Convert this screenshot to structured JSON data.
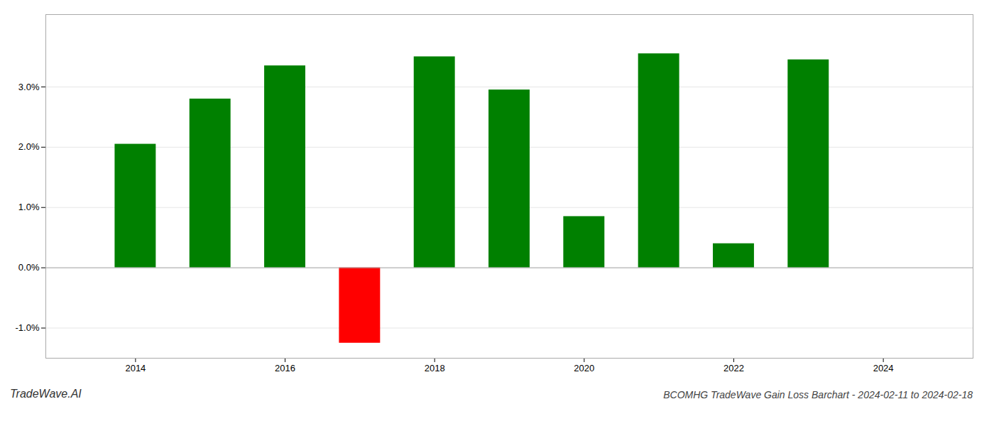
{
  "chart_data": {
    "type": "bar",
    "title": "BCOMHG TradeWave Gain Loss Barchart - 2024-02-11 to 2024-02-18",
    "annotations": [
      {
        "text": "TradeWave.AI"
      }
    ],
    "x": [
      2014,
      2015,
      2016,
      2017,
      2018,
      2019,
      2020,
      2021,
      2022,
      2023
    ],
    "values": [
      0.0205,
      0.028,
      0.0335,
      -0.0125,
      0.035,
      0.0295,
      0.0085,
      0.0355,
      0.004,
      0.0345
    ],
    "colors": [
      "#008000",
      "#008000",
      "#008000",
      "#ff0000",
      "#008000",
      "#008000",
      "#008000",
      "#008000",
      "#008000",
      "#008000"
    ],
    "xlim": [
      2012.8,
      2025.2
    ],
    "xticks": [
      2014,
      2016,
      2018,
      2020,
      2022,
      2024
    ],
    "ylim": [
      -0.015,
      0.042
    ],
    "yticks": [
      {
        "value": -0.01,
        "label": "-1.0%"
      },
      {
        "value": 0.0,
        "label": "0.0%"
      },
      {
        "value": 0.01,
        "label": "1.0%"
      },
      {
        "value": 0.02,
        "label": "2.0%"
      },
      {
        "value": 0.03,
        "label": "3.0%"
      }
    ],
    "grid": true
  }
}
